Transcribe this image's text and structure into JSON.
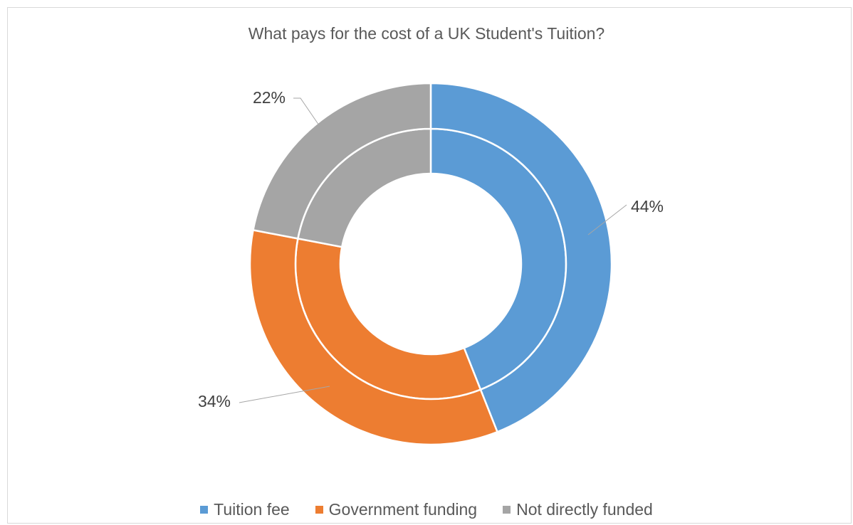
{
  "chart_data": {
    "type": "pie",
    "subtype": "doughnut",
    "title": "What pays for the cost of a UK Student's Tuition?",
    "categories": [
      "Tuition fee",
      "Government funding",
      "Not directly funded"
    ],
    "colors": [
      "#5b9bd5",
      "#ed7d31",
      "#a5a5a5"
    ],
    "series": [
      {
        "values": [
          44,
          34,
          22
        ]
      },
      {
        "values": [
          44,
          34,
          22
        ]
      }
    ],
    "data_labels": [
      "44%",
      "34%",
      "22%"
    ],
    "legend_position": "bottom"
  }
}
